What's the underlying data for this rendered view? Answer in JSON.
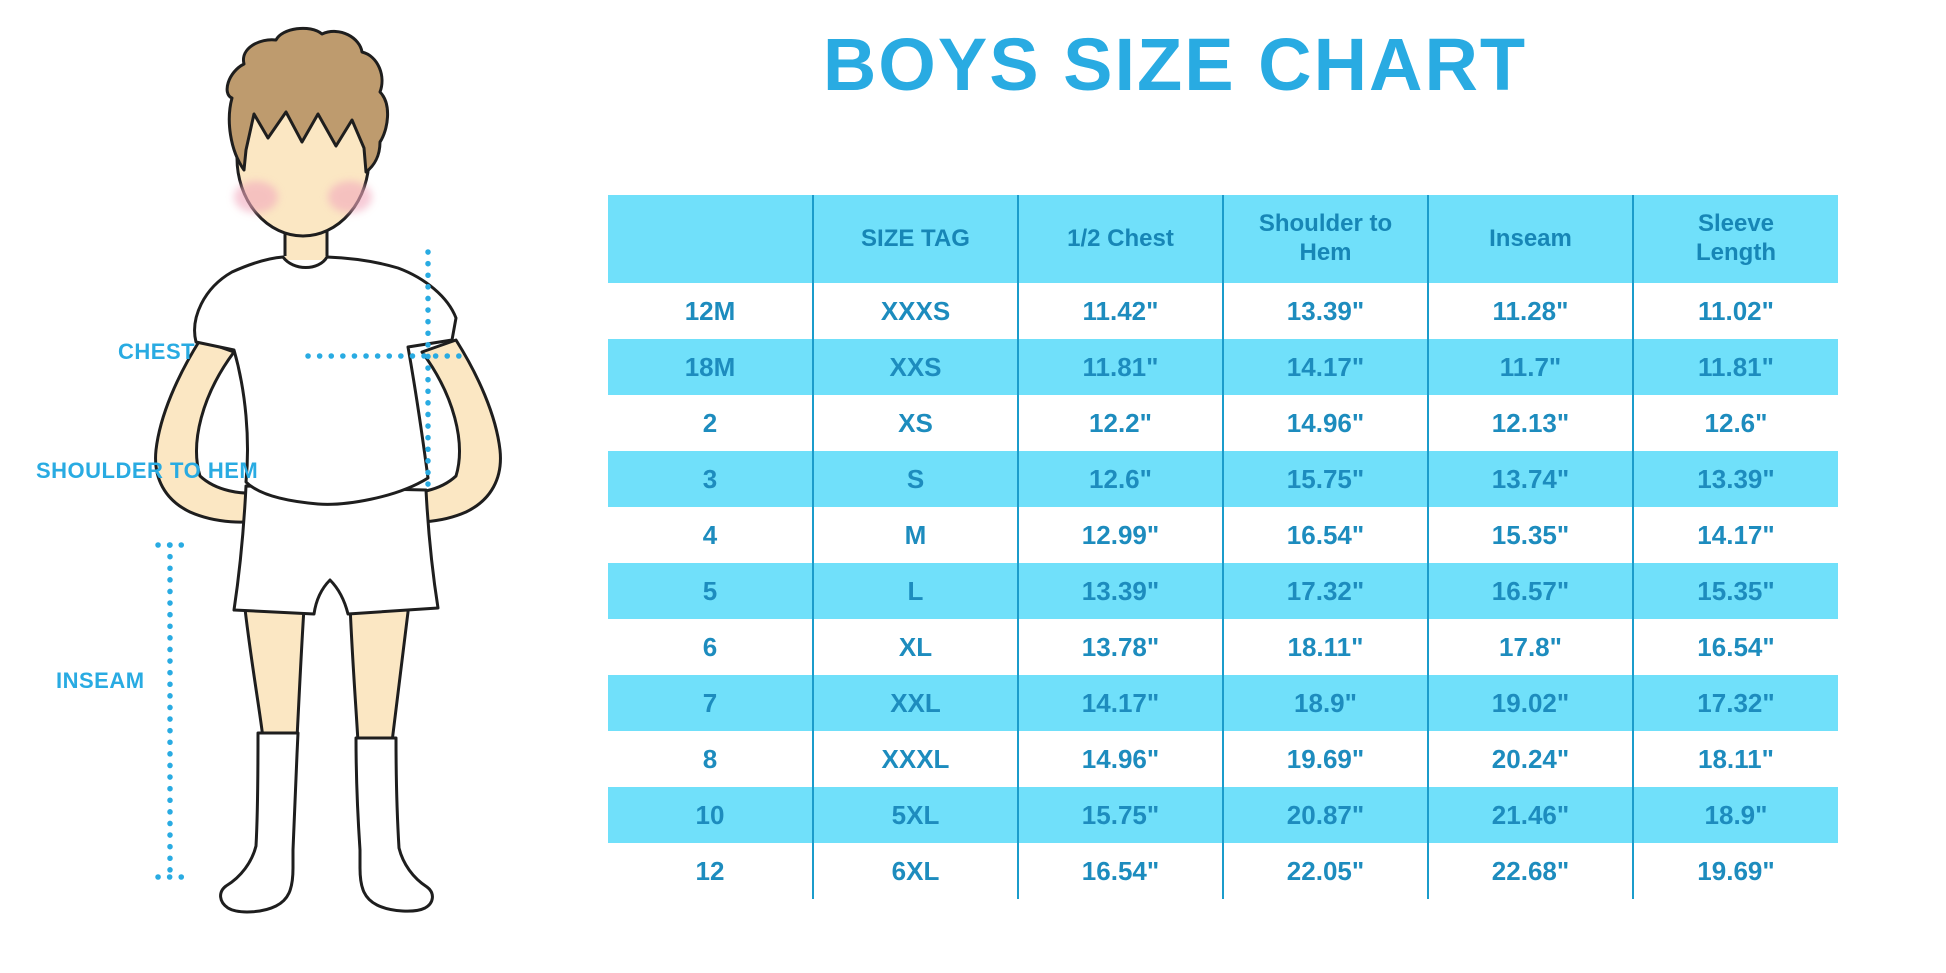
{
  "title": "BOYS SIZE CHART",
  "figure": {
    "chest_label": "CHEST",
    "shoulder_to_hem_label": "SHOULDER TO HEM",
    "inseam_label": "INSEAM"
  },
  "colors": {
    "accent_blue": "#29ABE2",
    "stripe_blue": "#70E0FA",
    "cell_text_blue": "#1D8CBE",
    "header_text_blue": "#1786B6",
    "grid_line_blue": "#1B9CCB",
    "skin": "#FBE7C3",
    "hair": "#BE9B6E"
  },
  "chart_data": {
    "type": "table",
    "title": "BOYS SIZE CHART",
    "columns": [
      "",
      "SIZE TAG",
      "1/2 Chest",
      "Shoulder to Hem",
      "Inseam",
      "Sleeve Length"
    ],
    "rows": [
      [
        "12M",
        "XXXS",
        "11.42\"",
        "13.39\"",
        "11.28\"",
        "11.02\""
      ],
      [
        "18M",
        "XXS",
        "11.81\"",
        "14.17\"",
        "11.7\"",
        "11.81\""
      ],
      [
        "2",
        "XS",
        "12.2\"",
        "14.96\"",
        "12.13\"",
        "12.6\""
      ],
      [
        "3",
        "S",
        "12.6\"",
        "15.75\"",
        "13.74\"",
        "13.39\""
      ],
      [
        "4",
        "M",
        "12.99\"",
        "16.54\"",
        "15.35\"",
        "14.17\""
      ],
      [
        "5",
        "L",
        "13.39\"",
        "17.32\"",
        "16.57\"",
        "15.35\""
      ],
      [
        "6",
        "XL",
        "13.78\"",
        "18.11\"",
        "17.8\"",
        "16.54\""
      ],
      [
        "7",
        "XXL",
        "14.17\"",
        "18.9\"",
        "19.02\"",
        "17.32\""
      ],
      [
        "8",
        "XXXL",
        "14.96\"",
        "19.69\"",
        "20.24\"",
        "18.11\""
      ],
      [
        "10",
        "5XL",
        "15.75\"",
        "20.87\"",
        "21.46\"",
        "18.9\""
      ],
      [
        "12",
        "6XL",
        "16.54\"",
        "22.05\"",
        "22.68\"",
        "19.69\""
      ]
    ],
    "measurement_unit": "inches",
    "layout": {
      "striped_rows": "alternating white and light blue",
      "grid": "vertical separators only"
    }
  }
}
